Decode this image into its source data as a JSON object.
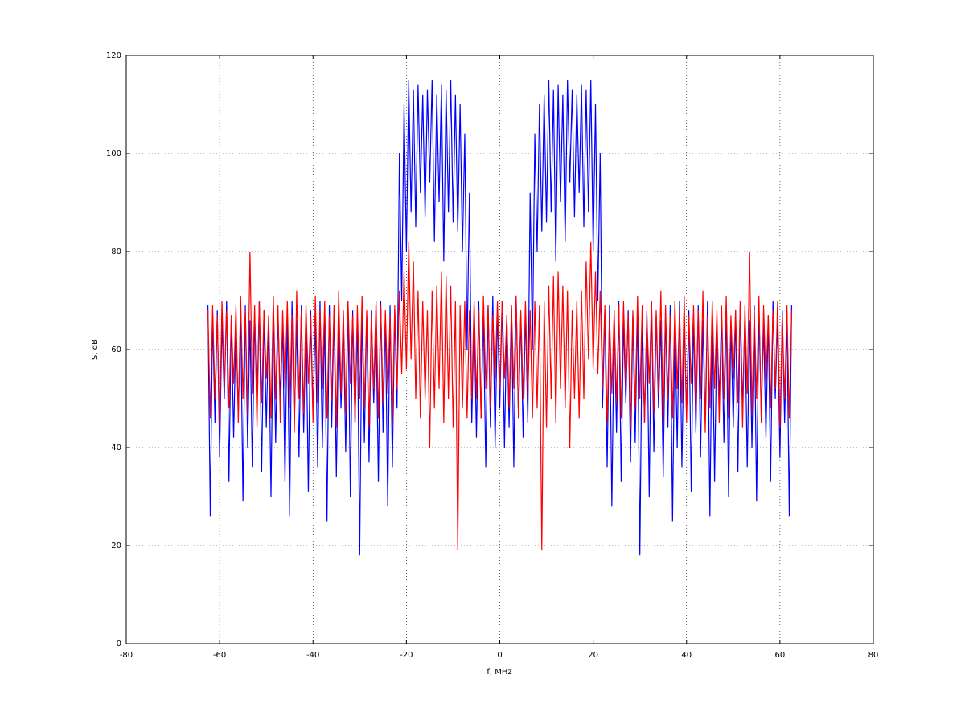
{
  "chart_data": {
    "type": "line",
    "xlabel": "f, MHz",
    "ylabel": "S, dB",
    "xlim": [
      -80,
      80
    ],
    "ylim": [
      0,
      120
    ],
    "xticks": [
      -80,
      -60,
      -40,
      -20,
      0,
      20,
      40,
      60,
      80
    ],
    "yticks": [
      0,
      20,
      40,
      60,
      80,
      100,
      120
    ],
    "grid": true,
    "x": [
      -62.5,
      -62,
      -61.5,
      -61,
      -60.5,
      -60,
      -59.5,
      -59,
      -58.5,
      -58,
      -57.5,
      -57,
      -56.5,
      -56,
      -55.5,
      -55,
      -54.5,
      -54,
      -53.5,
      -53,
      -52.5,
      -52,
      -51.5,
      -51,
      -50.5,
      -50,
      -49.5,
      -49,
      -48.5,
      -48,
      -47.5,
      -47,
      -46.5,
      -46,
      -45.5,
      -45,
      -44.5,
      -44,
      -43.5,
      -43,
      -42.5,
      -42,
      -41.5,
      -41,
      -40.5,
      -40,
      -39.5,
      -39,
      -38.5,
      -38,
      -37.5,
      -37,
      -36.5,
      -36,
      -35.5,
      -35,
      -34.5,
      -34,
      -33.5,
      -33,
      -32.5,
      -32,
      -31.5,
      -31,
      -30.5,
      -30,
      -29.5,
      -29,
      -28.5,
      -28,
      -27.5,
      -27,
      -26.5,
      -26,
      -25.5,
      -25,
      -24.5,
      -24,
      -23.5,
      -23,
      -22.5,
      -22,
      -21.5,
      -21,
      -20.5,
      -20,
      -19.5,
      -19,
      -18.5,
      -18,
      -17.5,
      -17,
      -16.5,
      -16,
      -15.5,
      -15,
      -14.5,
      -14,
      -13.5,
      -13,
      -12.5,
      -12,
      -11.5,
      -11,
      -10.5,
      -10,
      -9.5,
      -9,
      -8.5,
      -8,
      -7.5,
      -7,
      -6.5,
      -6,
      -5.5,
      -5,
      -4.5,
      -4,
      -3.5,
      -3,
      -2.5,
      -2,
      -1.5,
      -1,
      -0.5,
      0,
      0.5,
      1,
      1.5,
      2,
      2.5,
      3,
      3.5,
      4,
      4.5,
      5,
      5.5,
      6,
      6.5,
      7,
      7.5,
      8,
      8.5,
      9,
      9.5,
      10,
      10.5,
      11,
      11.5,
      12,
      12.5,
      13,
      13.5,
      14,
      14.5,
      15,
      15.5,
      16,
      16.5,
      17,
      17.5,
      18,
      18.5,
      19,
      19.5,
      20,
      20.5,
      21,
      21.5,
      22,
      22.5,
      23,
      23.5,
      24,
      24.5,
      25,
      25.5,
      26,
      26.5,
      27,
      27.5,
      28,
      28.5,
      29,
      29.5,
      30,
      30.5,
      31,
      31.5,
      32,
      32.5,
      33,
      33.5,
      34,
      34.5,
      35,
      35.5,
      36,
      36.5,
      37,
      37.5,
      38,
      38.5,
      39,
      39.5,
      40,
      40.5,
      41,
      41.5,
      42,
      42.5,
      43,
      43.5,
      44,
      44.5,
      45,
      45.5,
      46,
      46.5,
      47,
      47.5,
      48,
      48.5,
      49,
      49.5,
      50,
      50.5,
      51,
      51.5,
      52,
      52.5,
      53,
      53.5,
      54,
      54.5,
      55,
      55.5,
      56,
      56.5,
      57,
      57.5,
      58,
      58.5,
      59,
      59.5,
      60,
      60.5,
      61,
      61.5,
      62,
      62.5
    ],
    "series": [
      {
        "color": "#0000ff",
        "values": [
          69,
          26,
          67,
          45,
          68,
          38,
          66,
          50,
          70,
          33,
          67,
          42,
          65,
          47,
          68,
          29,
          69,
          40,
          66,
          36,
          67,
          48,
          70,
          35,
          68,
          44,
          66,
          30,
          69,
          41,
          67,
          50,
          65,
          33,
          68,
          26,
          70,
          45,
          66,
          38,
          69,
          43,
          67,
          31,
          68,
          47,
          66,
          36,
          70,
          40,
          67,
          25,
          69,
          44,
          68,
          34,
          66,
          48,
          67,
          39,
          70,
          30,
          68,
          45,
          66,
          18,
          69,
          41,
          67,
          37,
          68,
          49,
          66,
          33,
          70,
          43,
          67,
          28,
          69,
          36,
          68,
          48,
          100,
          70,
          110,
          80,
          115,
          88,
          113,
          85,
          114,
          92,
          112,
          87,
          113,
          94,
          115,
          82,
          112,
          90,
          114,
          78,
          113,
          88,
          115,
          86,
          112,
          84,
          110,
          80,
          104,
          60,
          92,
          45,
          68,
          42,
          70,
          46,
          67,
          36,
          69,
          44,
          71,
          40,
          68,
          48,
          70,
          40,
          67,
          44,
          69,
          36,
          71,
          46,
          67,
          42,
          68,
          45,
          92,
          60,
          104,
          80,
          110,
          84,
          112,
          86,
          115,
          88,
          113,
          78,
          114,
          90,
          112,
          82,
          115,
          94,
          113,
          87,
          112,
          92,
          114,
          85,
          113,
          88,
          115,
          80,
          110,
          70,
          100,
          48,
          68,
          36,
          69,
          28,
          67,
          43,
          70,
          33,
          66,
          49,
          68,
          37,
          67,
          41,
          69,
          18,
          66,
          45,
          68,
          30,
          70,
          39,
          67,
          48,
          66,
          34,
          68,
          44,
          69,
          25,
          67,
          40,
          70,
          36,
          66,
          47,
          68,
          31,
          67,
          43,
          69,
          38,
          66,
          45,
          70,
          26,
          68,
          33,
          65,
          50,
          67,
          41,
          69,
          30,
          66,
          44,
          68,
          35,
          70,
          48,
          67,
          36,
          66,
          40,
          69,
          29,
          68,
          47,
          65,
          42,
          67,
          33,
          70,
          50,
          66,
          38,
          68,
          45,
          67,
          26,
          69
        ]
      },
      {
        "color": "#ff0000",
        "values": [
          68,
          46,
          69,
          50,
          67,
          44,
          70,
          52,
          68,
          48,
          67,
          53,
          69,
          45,
          71,
          50,
          68,
          47,
          80,
          51,
          69,
          44,
          70,
          49,
          68,
          54,
          67,
          46,
          71,
          50,
          69,
          45,
          68,
          52,
          70,
          48,
          67,
          43,
          72,
          50,
          68,
          47,
          69,
          53,
          67,
          45,
          71,
          49,
          68,
          52,
          70,
          46,
          67,
          50,
          69,
          44,
          72,
          51,
          68,
          47,
          70,
          53,
          67,
          45,
          69,
          50,
          71,
          48,
          68,
          44,
          67,
          52,
          70,
          46,
          69,
          49,
          68,
          51,
          67,
          45,
          69,
          52,
          72,
          55,
          76,
          56,
          82,
          58,
          78,
          50,
          72,
          46,
          70,
          50,
          68,
          40,
          72,
          48,
          73,
          52,
          76,
          45,
          75,
          50,
          73,
          44,
          70,
          19,
          69,
          48,
          70,
          46,
          68,
          50,
          70,
          50,
          68,
          46,
          71,
          52,
          69,
          48,
          67,
          54,
          70,
          52,
          70,
          54,
          67,
          48,
          69,
          52,
          71,
          46,
          68,
          50,
          70,
          50,
          68,
          46,
          70,
          48,
          69,
          19,
          70,
          44,
          73,
          50,
          75,
          45,
          76,
          52,
          73,
          48,
          72,
          40,
          68,
          50,
          70,
          46,
          72,
          50,
          78,
          58,
          82,
          56,
          76,
          55,
          72,
          52,
          69,
          45,
          67,
          51,
          68,
          49,
          69,
          46,
          70,
          52,
          67,
          44,
          68,
          48,
          71,
          50,
          69,
          45,
          67,
          53,
          70,
          47,
          68,
          51,
          72,
          44,
          69,
          50,
          67,
          46,
          70,
          52,
          68,
          49,
          71,
          45,
          67,
          53,
          69,
          47,
          68,
          50,
          72,
          43,
          67,
          48,
          70,
          52,
          68,
          45,
          69,
          50,
          71,
          46,
          67,
          54,
          68,
          49,
          70,
          44,
          69,
          51,
          80,
          47,
          68,
          50,
          71,
          45,
          69,
          53,
          67,
          48,
          68,
          52,
          70,
          44,
          67,
          50,
          69,
          46,
          68
        ]
      }
    ]
  }
}
